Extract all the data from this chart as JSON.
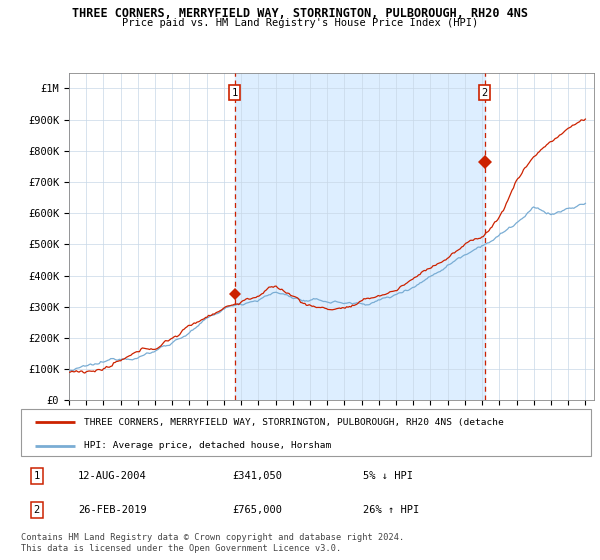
{
  "title": "THREE CORNERS, MERRYFIELD WAY, STORRINGTON, PULBOROUGH, RH20 4NS",
  "subtitle": "Price paid vs. HM Land Registry's House Price Index (HPI)",
  "ylabel_ticks": [
    "£0",
    "£100K",
    "£200K",
    "£300K",
    "£400K",
    "£500K",
    "£600K",
    "£700K",
    "£800K",
    "£900K",
    "£1M"
  ],
  "ytick_values": [
    0,
    100000,
    200000,
    300000,
    400000,
    500000,
    600000,
    700000,
    800000,
    900000,
    1000000
  ],
  "ylim": [
    0,
    1050000
  ],
  "xlim_start": 1995.0,
  "xlim_end": 2025.5,
  "legend_line1": "THREE CORNERS, MERRYFIELD WAY, STORRINGTON, PULBOROUGH, RH20 4NS (detache",
  "legend_line2": "HPI: Average price, detached house, Horsham",
  "annotation1_label": "1",
  "annotation1_date": "12-AUG-2004",
  "annotation1_price": "£341,050",
  "annotation1_hpi": "5% ↓ HPI",
  "annotation2_label": "2",
  "annotation2_date": "26-FEB-2019",
  "annotation2_price": "£765,000",
  "annotation2_hpi": "26% ↑ HPI",
  "footer": "Contains HM Land Registry data © Crown copyright and database right 2024.\nThis data is licensed under the Open Government Licence v3.0.",
  "hpi_color": "#7aadd4",
  "price_color": "#cc2200",
  "shade_color": "#ddeeff",
  "marker1_x": 2004.62,
  "marker1_y": 341050,
  "marker2_x": 2019.15,
  "marker2_y": 765000,
  "dashed1_x": 2004.62,
  "dashed2_x": 2019.15
}
